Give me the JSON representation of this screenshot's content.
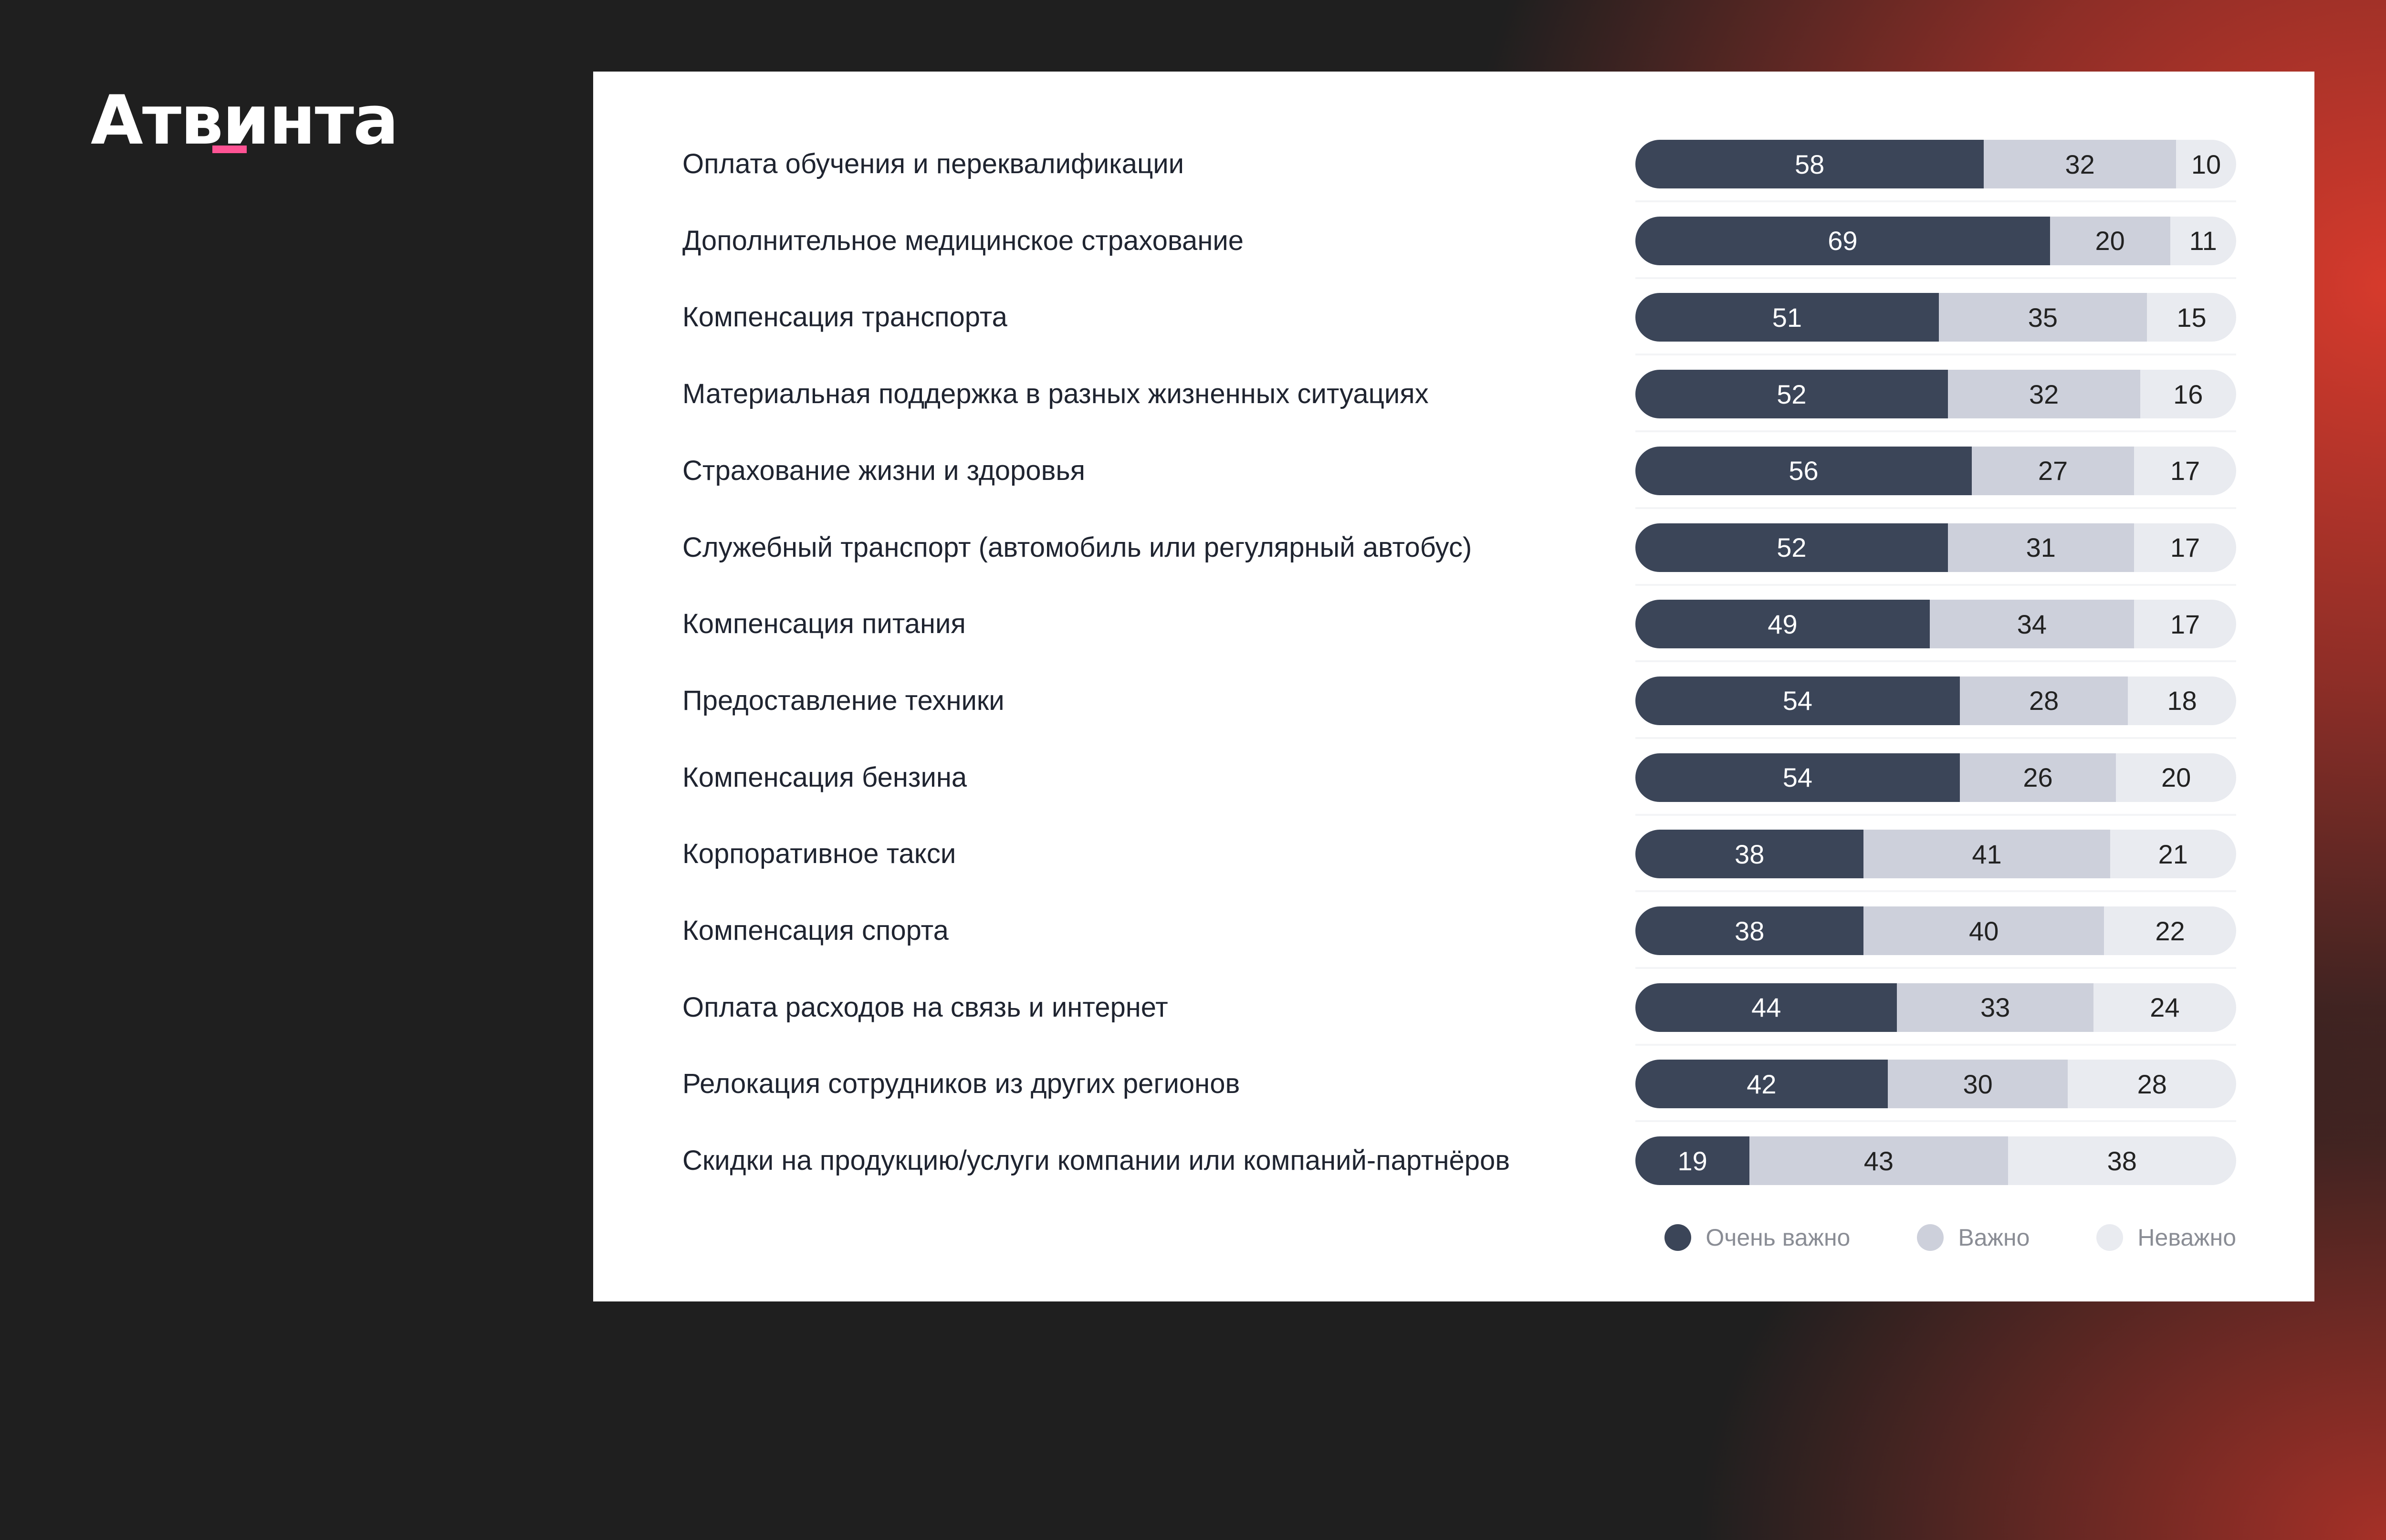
{
  "logo": {
    "text": "Атвинта",
    "accent": "#ff5394"
  },
  "chart_data": {
    "type": "bar",
    "orientation": "horizontal",
    "stacked": true,
    "colors": [
      "#3b4558",
      "#cdd0db",
      "#e9ebf0"
    ],
    "categories": [
      "Оплата обучения и переквалификации",
      "Дополнительное медицинское страхование",
      "Компенсация транспорта",
      "Материальная поддержка в разных жизненных ситуациях",
      "Страхование жизни и здоровья",
      "Служебный транспорт (автомобиль или регулярный автобус)",
      "Компенсация питания",
      "Предоставление техники",
      "Компенсация бензина",
      "Корпоративное такси",
      "Компенсация спорта",
      "Оплата расходов на связь и интернет",
      "Релокация сотрудников из других регионов",
      "Скидки на продукцию/услуги компании или компаний-партнёров"
    ],
    "series": [
      {
        "name": "Очень важно",
        "values": [
          58,
          69,
          51,
          52,
          56,
          52,
          49,
          54,
          54,
          38,
          38,
          44,
          42,
          19
        ]
      },
      {
        "name": "Важно",
        "values": [
          32,
          20,
          35,
          32,
          27,
          31,
          34,
          28,
          26,
          41,
          40,
          33,
          30,
          43
        ]
      },
      {
        "name": "Неважно",
        "values": [
          10,
          11,
          15,
          16,
          17,
          17,
          17,
          18,
          20,
          21,
          22,
          24,
          28,
          38
        ]
      }
    ],
    "xlim": [
      0,
      100
    ],
    "legend": "bottom-right",
    "grid": false
  }
}
